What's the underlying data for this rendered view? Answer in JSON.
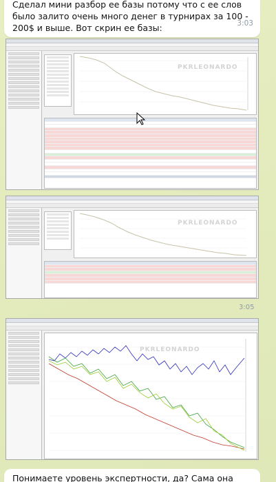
{
  "messages": [
    {
      "text": "Сделал мини разбор ее базы потому что с ее слов было залито очень много денег в турнирах за 100 - 200$ и выше. Вот скрин ее базы:",
      "time": "3:03"
    },
    {
      "time": "3:05"
    },
    {
      "text": "Понимаете уровень экспертности, да? Сама она говорит что"
    }
  ],
  "screenshots": [
    {
      "watermark": "PKRLEONARDO"
    },
    {
      "watermark": "PKRLEONARDO"
    },
    {
      "watermark": "PKRLEONARDO"
    }
  ],
  "colors": {
    "bubble": "#ffffff",
    "wallpaper": "#e9efc8",
    "line_primary": "#c7c2a8",
    "line_blue": "#2b2bb8",
    "line_red": "#c0392b",
    "line_green": "#3fa33f",
    "line_lime": "#9acd32"
  }
}
